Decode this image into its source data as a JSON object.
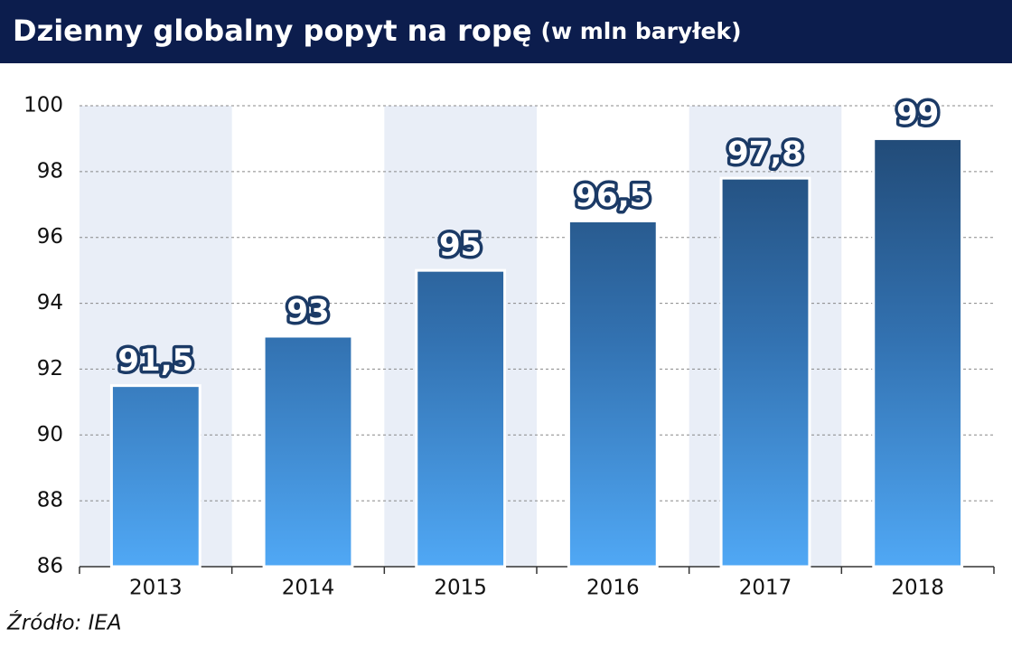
{
  "chart_data": {
    "type": "bar",
    "title": "Dzienny globalny popyt na ropę",
    "subtitle": "(w mln baryłek)",
    "categories": [
      "2013",
      "2014",
      "2015",
      "2016",
      "2017",
      "2018"
    ],
    "values": [
      91.5,
      93,
      95,
      96.5,
      97.8,
      99
    ],
    "value_labels": [
      "91,5",
      "93",
      "95",
      "96,5",
      "97,8",
      "99"
    ],
    "color": "#3271b0",
    "ylim": [
      86,
      100
    ],
    "yticks": [
      86,
      88,
      90,
      92,
      94,
      96,
      98,
      100
    ],
    "grid": true,
    "source": "Źródło: IEA"
  }
}
